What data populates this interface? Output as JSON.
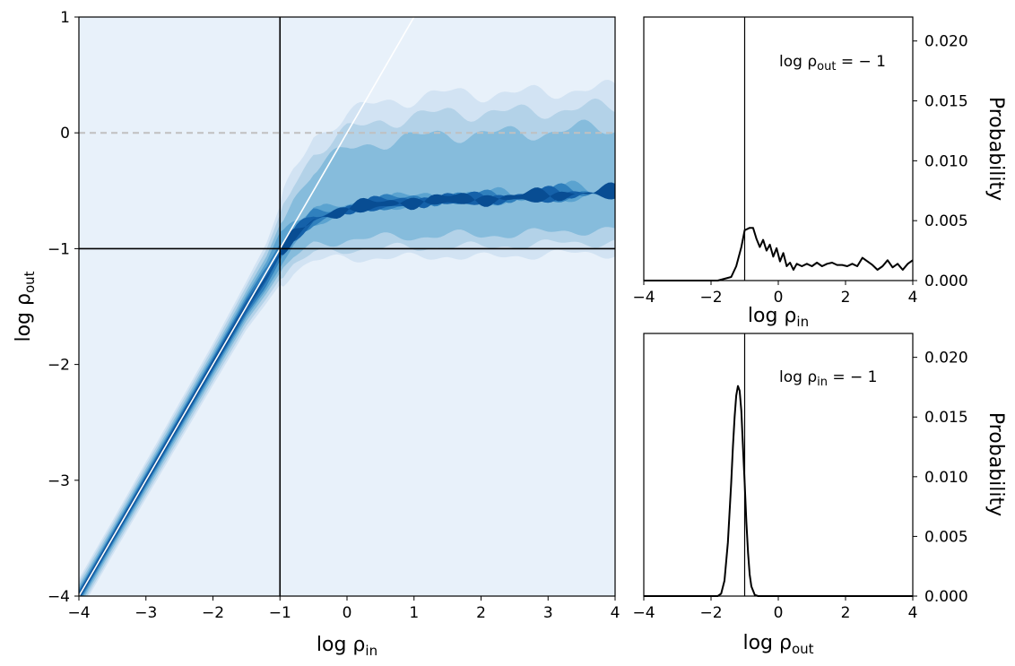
{
  "chart_data": [
    {
      "id": "main",
      "type": "heatmap",
      "subtype": "2D kernel density (filled contours)",
      "xlabel": {
        "main": "log ρ",
        "sub": "in"
      },
      "ylabel": {
        "main": "log ρ",
        "sub": "out"
      },
      "xlim": [
        -4,
        4
      ],
      "ylim": [
        -4,
        1
      ],
      "xticks": [
        "−4",
        "−3",
        "−2",
        "−1",
        "0",
        "1",
        "2",
        "3",
        "4"
      ],
      "xtick_values": [
        -4,
        -3,
        -2,
        -1,
        0,
        1,
        2,
        3,
        4
      ],
      "yticks": [
        "−4",
        "−3",
        "−2",
        "−1",
        "0",
        "1"
      ],
      "ytick_values": [
        -4,
        -3,
        -2,
        -1,
        0,
        1
      ],
      "grid": false,
      "colormap": [
        "#e8f1fa",
        "#d2e3f3",
        "#b3d2e8",
        "#86bcdc",
        "#5ba3d0",
        "#3080bd",
        "#1561a9",
        "#084d93"
      ],
      "density_ridge": {
        "x": [
          -4.0,
          -3.5,
          -3.0,
          -2.5,
          -2.0,
          -1.5,
          -1.2,
          -1.0,
          -0.8,
          -0.5,
          0.0,
          0.5,
          1.0,
          1.5,
          2.0,
          2.5,
          3.0,
          3.5,
          4.0
        ],
        "y": [
          -4.0,
          -3.5,
          -3.0,
          -2.5,
          -2.0,
          -1.5,
          -1.25,
          -1.05,
          -0.9,
          -0.75,
          -0.66,
          -0.62,
          -0.6,
          -0.58,
          -0.58,
          -0.56,
          -0.55,
          -0.52,
          -0.52
        ],
        "spread_above": [
          0.15,
          0.15,
          0.16,
          0.17,
          0.18,
          0.22,
          0.3,
          0.42,
          0.55,
          0.72,
          0.82,
          0.88,
          0.9,
          0.92,
          0.92,
          0.9,
          0.9,
          0.9,
          0.9
        ],
        "spread_below": [
          0.15,
          0.15,
          0.16,
          0.17,
          0.18,
          0.2,
          0.22,
          0.26,
          0.3,
          0.36,
          0.42,
          0.46,
          0.48,
          0.48,
          0.5,
          0.5,
          0.5,
          0.52,
          0.52
        ]
      },
      "lines": [
        {
          "name": "identity",
          "x": [
            -4,
            1
          ],
          "y": [
            -4,
            1
          ],
          "color": "#ffffff",
          "style": "solid"
        },
        {
          "name": "y = 0",
          "x": [
            -4,
            4
          ],
          "y": [
            0,
            0
          ],
          "color": "#c0c0c0",
          "style": "dashed"
        },
        {
          "name": "x = -1",
          "x": [
            -1,
            -1
          ],
          "y": [
            -4,
            1
          ],
          "color": "#000000",
          "style": "solid"
        },
        {
          "name": "y = -1",
          "x": [
            -4,
            4
          ],
          "y": [
            -1,
            -1
          ],
          "color": "#000000",
          "style": "solid"
        }
      ]
    },
    {
      "id": "top-right",
      "type": "line",
      "annotation": {
        "main": "log ρ",
        "sub": "out",
        "rest": " = − 1"
      },
      "xlabel": {
        "main": "log ρ",
        "sub": "in"
      },
      "ylabel": "Probability",
      "xlim": [
        -4,
        4
      ],
      "ylim": [
        0,
        0.022
      ],
      "xticks": [
        "−4",
        "−2",
        "0",
        "2",
        "4"
      ],
      "xtick_values": [
        -4,
        -2,
        0,
        2,
        4
      ],
      "yticks": [
        "0.000",
        "0.005",
        "0.010",
        "0.015",
        "0.020"
      ],
      "ytick_values": [
        0,
        0.005,
        0.01,
        0.015,
        0.02
      ],
      "vline": -1,
      "series": [
        {
          "x": [
            -4.0,
            -1.8,
            -1.4,
            -1.25,
            -1.1,
            -1.0,
            -0.85,
            -0.75,
            -0.65,
            -0.55,
            -0.45,
            -0.35,
            -0.25,
            -0.15,
            -0.05,
            0.05,
            0.15,
            0.25,
            0.35,
            0.45,
            0.55,
            0.7,
            0.85,
            1.0,
            1.15,
            1.3,
            1.45,
            1.6,
            1.75,
            1.9,
            2.05,
            2.2,
            2.35,
            2.5,
            2.65,
            2.8,
            2.95,
            3.1,
            3.25,
            3.4,
            3.55,
            3.7,
            3.85,
            4.0
          ],
          "y": [
            0.0,
            0.0,
            0.0003,
            0.0012,
            0.0028,
            0.0042,
            0.0044,
            0.0044,
            0.0035,
            0.0028,
            0.0034,
            0.0025,
            0.003,
            0.002,
            0.0027,
            0.0016,
            0.0023,
            0.0012,
            0.0015,
            0.0009,
            0.0014,
            0.0012,
            0.0014,
            0.0012,
            0.0015,
            0.0012,
            0.0014,
            0.0015,
            0.0013,
            0.0013,
            0.0012,
            0.0014,
            0.0012,
            0.0019,
            0.0016,
            0.0013,
            0.0009,
            0.0012,
            0.0017,
            0.0011,
            0.0014,
            0.0009,
            0.0014,
            0.0017
          ],
          "color": "#000000"
        }
      ]
    },
    {
      "id": "bottom-right",
      "type": "line",
      "annotation": {
        "main": "log ρ",
        "sub": "in",
        "rest": " = − 1"
      },
      "xlabel": {
        "main": "log ρ",
        "sub": "out"
      },
      "ylabel": "Probability",
      "xlim": [
        -4,
        4
      ],
      "ylim": [
        0,
        0.022
      ],
      "xticks": [
        "−4",
        "−2",
        "0",
        "2",
        "4"
      ],
      "xtick_values": [
        -4,
        -2,
        0,
        2,
        4
      ],
      "yticks": [
        "0.000",
        "0.005",
        "0.010",
        "0.015",
        "0.020"
      ],
      "ytick_values": [
        0,
        0.005,
        0.01,
        0.015,
        0.02
      ],
      "vline": -1,
      "series": [
        {
          "x": [
            -4.0,
            -1.8,
            -1.7,
            -1.6,
            -1.5,
            -1.4,
            -1.35,
            -1.3,
            -1.25,
            -1.2,
            -1.15,
            -1.1,
            -1.05,
            -1.0,
            -0.95,
            -0.9,
            -0.85,
            -0.8,
            -0.7,
            -0.6,
            4.0
          ],
          "y": [
            0.0,
            0.0,
            0.0002,
            0.0013,
            0.0045,
            0.0095,
            0.0125,
            0.015,
            0.0168,
            0.0176,
            0.0172,
            0.0155,
            0.0125,
            0.0095,
            0.0062,
            0.0036,
            0.0018,
            0.0008,
            0.0001,
            0.0,
            0.0
          ],
          "color": "#000000"
        }
      ]
    }
  ]
}
